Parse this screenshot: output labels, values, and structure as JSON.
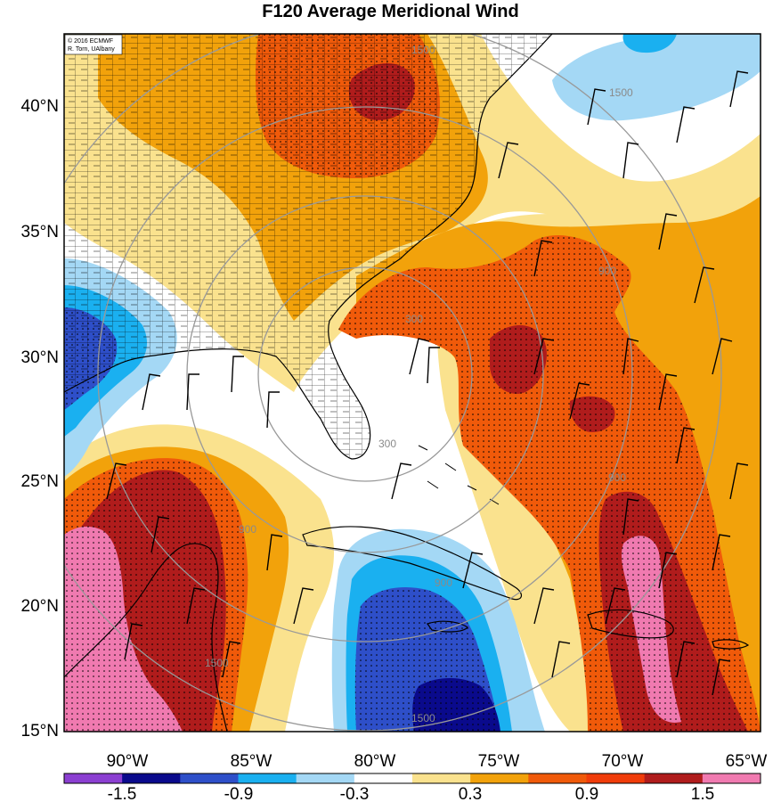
{
  "title": "F120 Average Meridional Wind",
  "credits": [
    "© 2016 ECMWF",
    "R. Torn, UAlbany"
  ],
  "colors": {
    "c_n18": "#8b3fd1",
    "c_n15": "#0a0a8c",
    "c_n12": "#2e4fc9",
    "c_n09": "#1ab0f0",
    "c_n06": "#a4d8f5",
    "c_n03": "#ffffff",
    "c_p03": "#fae28e",
    "c_p06": "#f2a20b",
    "c_p09": "#f05a0a",
    "c_p12": "#f03c0a",
    "c_p15": "#b01c1c",
    "c_p18": "#f07ab0",
    "land_line": "#000000",
    "ring": "#999999"
  },
  "map_data": {
    "lon_ticks": [
      "90°W",
      "85°W",
      "80°W",
      "75°W",
      "70°W",
      "65°W"
    ],
    "lat_ticks": [
      "40°N",
      "35°N",
      "30°N",
      "25°N",
      "20°N",
      "15°N"
    ],
    "ring_labels": [
      "300",
      "300",
      "900",
      "900",
      "900",
      "900",
      "1500",
      "1500",
      "1500",
      "1500"
    ],
    "colorbar": {
      "labels": [
        "-1.5",
        "-0.9",
        "-0.3",
        "0.3",
        "0.9",
        "1.5"
      ],
      "colors": [
        "#8b3fd1",
        "#0a0a8c",
        "#2e4fc9",
        "#1ab0f0",
        "#a4d8f5",
        "#ffffff",
        "#fae28e",
        "#f2a20b",
        "#f05a0a",
        "#f03c0a",
        "#b01c1c",
        "#f07ab0"
      ]
    }
  }
}
